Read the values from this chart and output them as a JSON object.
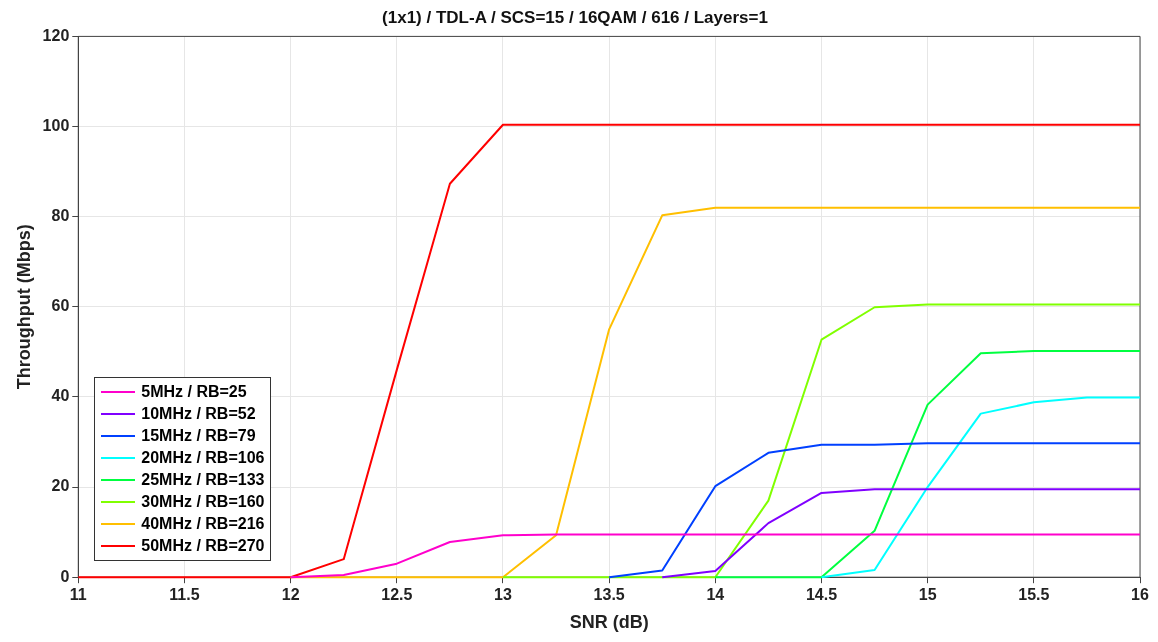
{
  "chart_data": {
    "type": "line",
    "title": "(1x1) / TDL-A / SCS=15 / 16QAM / 616 / Layers=1",
    "xlabel": "SNR (dB)",
    "ylabel": "Throughput (Mbps)",
    "x": [
      11,
      11.25,
      11.5,
      11.75,
      12,
      12.25,
      12.5,
      12.75,
      13,
      13.25,
      13.5,
      13.75,
      14,
      14.25,
      14.5,
      14.75,
      15,
      15.25,
      15.5,
      15.75,
      16
    ],
    "series": [
      {
        "name": "5MHz / RB=25",
        "color": "#ff00cc",
        "values": [
          null,
          null,
          null,
          null,
          0,
          0.5,
          3,
          7.8,
          9.3,
          9.5,
          9.5,
          9.5,
          9.5,
          9.5,
          9.5,
          9.5,
          9.5,
          9.5,
          9.5,
          9.5,
          9.5
        ]
      },
      {
        "name": "10MHz / RB=52",
        "color": "#8000ff",
        "values": [
          null,
          null,
          null,
          null,
          null,
          null,
          null,
          null,
          null,
          null,
          null,
          0,
          1.4,
          12,
          18.7,
          19.5,
          19.5,
          19.5,
          19.5,
          19.5,
          19.5
        ]
      },
      {
        "name": "15MHz / RB=79",
        "color": "#0040ff",
        "values": [
          null,
          null,
          null,
          null,
          null,
          null,
          null,
          null,
          null,
          null,
          0,
          1.5,
          20.2,
          27.6,
          29.4,
          29.4,
          29.7,
          29.7,
          29.7,
          29.7,
          29.7
        ]
      },
      {
        "name": "20MHz / RB=106",
        "color": "#00ffff",
        "values": [
          null,
          null,
          null,
          null,
          null,
          null,
          null,
          null,
          null,
          null,
          null,
          null,
          null,
          null,
          0,
          1.6,
          20,
          36.3,
          38.8,
          39.9,
          39.9
        ]
      },
      {
        "name": "25MHz / RB=133",
        "color": "#00ff40",
        "values": [
          null,
          null,
          null,
          null,
          null,
          null,
          null,
          null,
          null,
          null,
          null,
          null,
          0,
          0,
          0,
          10.3,
          38.3,
          49.7,
          50.2,
          50.2,
          50.2
        ]
      },
      {
        "name": "30MHz / RB=160",
        "color": "#80ff00",
        "values": [
          null,
          null,
          null,
          null,
          null,
          null,
          null,
          null,
          0,
          0,
          0,
          0,
          0,
          17,
          52.7,
          59.9,
          60.5,
          60.5,
          60.5,
          60.5,
          60.5
        ]
      },
      {
        "name": "40MHz / RB=216",
        "color": "#ffbf00",
        "values": [
          null,
          null,
          null,
          null,
          0,
          0,
          0,
          0,
          0,
          9.3,
          55,
          80.3,
          82,
          82,
          82,
          82,
          82,
          82,
          82,
          82,
          82
        ]
      },
      {
        "name": "50MHz / RB=270",
        "color": "#ff0000",
        "values": [
          0,
          0,
          0,
          0,
          0,
          4,
          46,
          87.3,
          100.4,
          100.4,
          100.4,
          100.4,
          100.4,
          100.4,
          100.4,
          100.4,
          100.4,
          100.4,
          100.4,
          100.4,
          100.4
        ]
      }
    ],
    "xlim": [
      11,
      16
    ],
    "xticks": [
      11,
      11.5,
      12,
      12.5,
      13,
      13.5,
      14,
      14.5,
      15,
      15.5,
      16
    ],
    "ylim": [
      0,
      120
    ],
    "yticks": [
      0,
      20,
      40,
      60,
      80,
      100,
      120
    ],
    "grid": true,
    "legend": "bottom left",
    "marker": "none",
    "line_style": "solid"
  }
}
